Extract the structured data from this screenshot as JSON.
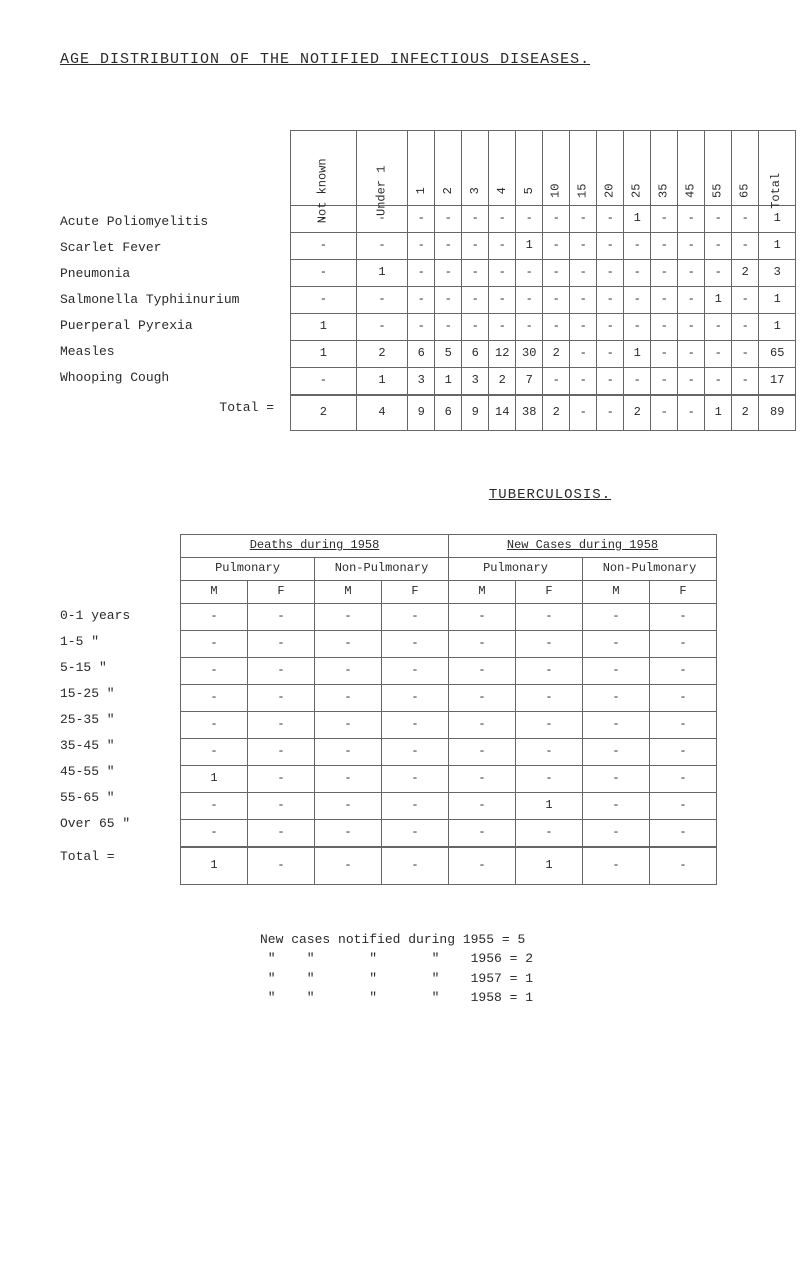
{
  "page_title": "AGE DISTRIBUTION OF THE NOTIFIED INFECTIOUS DISEASES.",
  "table1": {
    "columns": [
      "Not known",
      "Under 1",
      "1",
      "2",
      "3",
      "4",
      "5",
      "10",
      "15",
      "20",
      "25",
      "35",
      "45",
      "55",
      "65",
      "Total"
    ],
    "row_labels": [
      "Acute Poliomyelitis",
      "Scarlet Fever",
      "Pneumonia",
      "Salmonella Typhiinurium",
      "Puerperal Pyrexia",
      "Measles",
      "Whooping Cough"
    ],
    "rows": [
      [
        "-",
        "-",
        "-",
        "-",
        "-",
        "-",
        "-",
        "-",
        "-",
        "-",
        "1",
        "-",
        "-",
        "-",
        "-",
        "1"
      ],
      [
        "-",
        "-",
        "-",
        "-",
        "-",
        "-",
        "1",
        "-",
        "-",
        "-",
        "-",
        "-",
        "-",
        "-",
        "-",
        "1"
      ],
      [
        "-",
        "1",
        "-",
        "-",
        "-",
        "-",
        "-",
        "-",
        "-",
        "-",
        "-",
        "-",
        "-",
        "-",
        "2",
        "3"
      ],
      [
        "-",
        "-",
        "-",
        "-",
        "-",
        "-",
        "-",
        "-",
        "-",
        "-",
        "-",
        "-",
        "-",
        "1",
        "-",
        "1"
      ],
      [
        "1",
        "-",
        "-",
        "-",
        "-",
        "-",
        "-",
        "-",
        "-",
        "-",
        "-",
        "-",
        "-",
        "-",
        "-",
        "1"
      ],
      [
        "1",
        "2",
        "6",
        "5",
        "6",
        "12",
        "30",
        "2",
        "-",
        "-",
        "1",
        "-",
        "-",
        "-",
        "-",
        "65"
      ],
      [
        "-",
        "1",
        "3",
        "1",
        "3",
        "2",
        "7",
        "-",
        "-",
        "-",
        "-",
        "-",
        "-",
        "-",
        "-",
        "17"
      ]
    ],
    "total_label": "Total =",
    "totals": [
      "2",
      "4",
      "9",
      "6",
      "9",
      "14",
      "38",
      "2",
      "-",
      "-",
      "2",
      "-",
      "-",
      "1",
      "2",
      "89"
    ]
  },
  "tb_heading": "TUBERCULOSIS.",
  "table2": {
    "super_headers": [
      "Deaths during 1958",
      "New Cases during 1958"
    ],
    "sub_headers": [
      "Pulmonary",
      "Non-Pulmonary",
      "Pulmonary",
      "Non-Pulmonary"
    ],
    "mf_headers": [
      "M",
      "F",
      "M",
      "F",
      "M",
      "F",
      "M",
      "F"
    ],
    "row_labels": [
      "0-1 years",
      "1-5   \"",
      "5-15  \"",
      "15-25 \"",
      "25-35 \"",
      "35-45 \"",
      "45-55 \"",
      "55-65 \"",
      "Over 65 \""
    ],
    "rows": [
      [
        "-",
        "-",
        "-",
        "-",
        "-",
        "-",
        "-",
        "-"
      ],
      [
        "-",
        "-",
        "-",
        "-",
        "-",
        "-",
        "-",
        "-"
      ],
      [
        "-",
        "-",
        "-",
        "-",
        "-",
        "-",
        "-",
        "-"
      ],
      [
        "-",
        "-",
        "-",
        "-",
        "-",
        "-",
        "-",
        "-"
      ],
      [
        "-",
        "-",
        "-",
        "-",
        "-",
        "-",
        "-",
        "-"
      ],
      [
        "-",
        "-",
        "-",
        "-",
        "-",
        "-",
        "-",
        "-"
      ],
      [
        "1",
        "-",
        "-",
        "-",
        "-",
        "-",
        "-",
        "-"
      ],
      [
        "-",
        "-",
        "-",
        "-",
        "-",
        "1",
        "-",
        "-"
      ],
      [
        "-",
        "-",
        "-",
        "-",
        "-",
        "-",
        "-",
        "-"
      ]
    ],
    "total_label": "Total =",
    "totals": [
      "1",
      "-",
      "-",
      "-",
      "-",
      "1",
      "-",
      "-"
    ]
  },
  "footer": {
    "lines": [
      "New cases notified during 1955 = 5",
      " \"    \"       \"       \"    1956 = 2",
      " \"    \"       \"       \"    1957 = 1",
      " \"    \"       \"       \"    1958 = 1"
    ]
  }
}
